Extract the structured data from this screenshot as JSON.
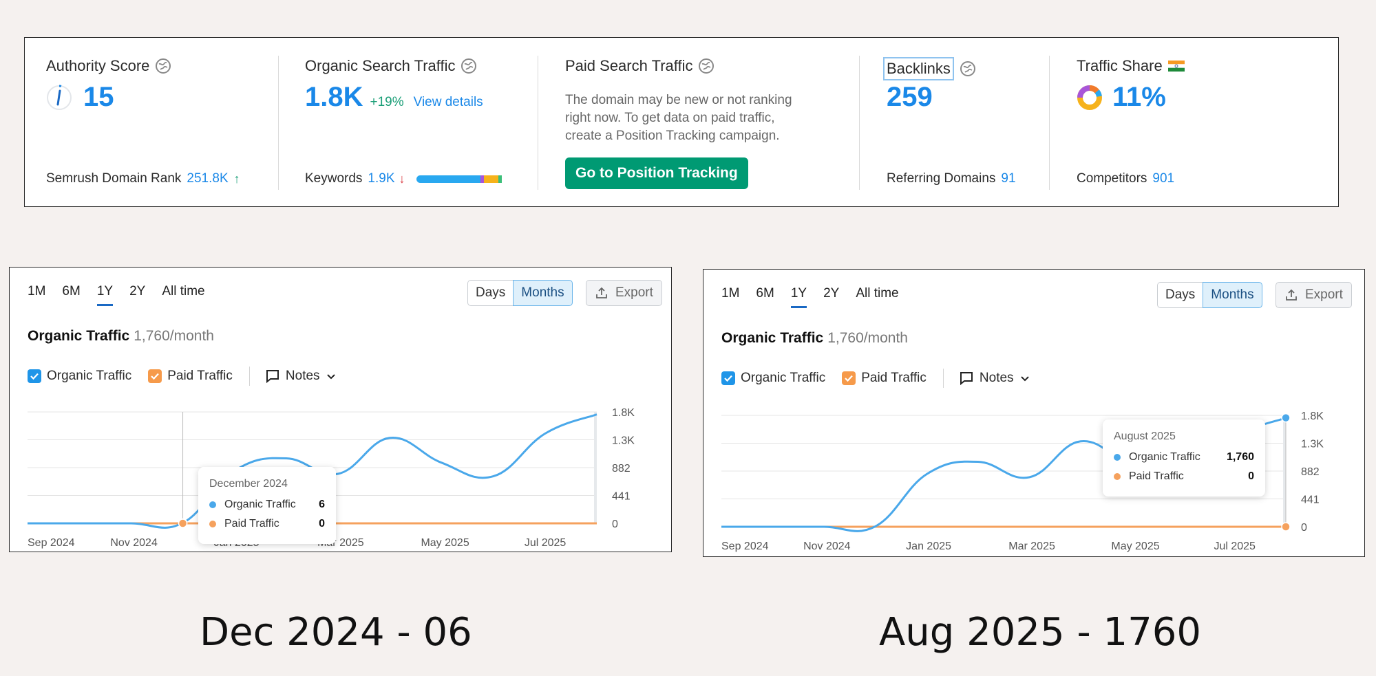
{
  "metrics": {
    "authority": {
      "title": "Authority Score",
      "value": "15",
      "foot_label": "Semrush Domain Rank",
      "foot_value": "251.8K",
      "foot_arrow": "↑"
    },
    "organic": {
      "title": "Organic Search Traffic",
      "value": "1.8K",
      "delta": "+19%",
      "link": "View details",
      "foot_label": "Keywords",
      "foot_value": "1.9K",
      "foot_arrow": "↓",
      "keyword_bar": [
        {
          "color": "#29a8f0",
          "share": 0.72
        },
        {
          "color": "#a855d9",
          "share": 0.04
        },
        {
          "color": "#f6b21b",
          "share": 0.16
        },
        {
          "color": "#3cbf7a",
          "share": 0.04
        }
      ]
    },
    "paid": {
      "title": "Paid Search Traffic",
      "text": "The domain may be new or not ranking right now. To get data on paid traffic, create a Position Tracking campaign.",
      "button": "Go to Position Tracking"
    },
    "backlinks": {
      "title": "Backlinks",
      "value": "259",
      "foot_label": "Referring Domains",
      "foot_value": "91"
    },
    "share": {
      "title": "Traffic Share",
      "value": "11%",
      "foot_label": "Competitors",
      "foot_value": "901"
    }
  },
  "panels": [
    {
      "tabs": [
        "1M",
        "6M",
        "1Y",
        "2Y",
        "All time"
      ],
      "active_tab": "1Y",
      "seg": [
        "Days",
        "Months"
      ],
      "export": "Export",
      "title": "Organic Traffic",
      "subtitle": "1,760/month",
      "legend": {
        "organic": "Organic Traffic",
        "paid": "Paid Traffic",
        "notes": "Notes"
      },
      "x_labels": [
        "Sep 2024",
        "Nov 2024",
        "Jan 2025",
        "Mar 2025",
        "May 2025",
        "Jul 2025"
      ],
      "y_labels": [
        "1.8K",
        "1.3K",
        "882",
        "441",
        "0"
      ],
      "tooltip": {
        "title": "December 2024",
        "organic_label": "Organic Traffic",
        "organic_value": "6",
        "paid_label": "Paid Traffic",
        "paid_value": "0"
      }
    },
    {
      "tabs": [
        "1M",
        "6M",
        "1Y",
        "2Y",
        "All time"
      ],
      "active_tab": "1Y",
      "seg": [
        "Days",
        "Months"
      ],
      "export": "Export",
      "title": "Organic Traffic",
      "subtitle": "1,760/month",
      "legend": {
        "organic": "Organic Traffic",
        "paid": "Paid Traffic",
        "notes": "Notes"
      },
      "x_labels": [
        "Sep 2024",
        "Nov 2024",
        "Jan 2025",
        "Mar 2025",
        "May 2025",
        "Jul 2025"
      ],
      "y_labels": [
        "1.8K",
        "1.3K",
        "882",
        "441",
        "0"
      ],
      "tooltip": {
        "title": "August 2025",
        "organic_label": "Organic Traffic",
        "organic_value": "1,760",
        "paid_label": "Paid Traffic",
        "paid_value": "0"
      }
    }
  ],
  "chart_data": [
    {
      "type": "line",
      "title": "Organic Traffic",
      "x": [
        "Sep 2024",
        "Oct 2024",
        "Nov 2024",
        "Dec 2024",
        "Jan 2025",
        "Feb 2025",
        "Mar 2025",
        "Apr 2025",
        "May 2025",
        "Jun 2025",
        "Jul 2025",
        "Aug 2025"
      ],
      "series": [
        {
          "name": "Organic Traffic",
          "color": "#4aa8ea",
          "values": [
            0,
            0,
            0,
            6,
            850,
            1050,
            800,
            1380,
            980,
            760,
            1450,
            1760
          ]
        },
        {
          "name": "Paid Traffic",
          "color": "#f5a15d",
          "values": [
            0,
            0,
            0,
            0,
            0,
            0,
            0,
            0,
            0,
            0,
            0,
            0
          ]
        }
      ],
      "ylim": [
        0,
        1800
      ],
      "highlight_index": 3
    },
    {
      "type": "line",
      "title": "Organic Traffic",
      "x": [
        "Sep 2024",
        "Oct 2024",
        "Nov 2024",
        "Dec 2024",
        "Jan 2025",
        "Feb 2025",
        "Mar 2025",
        "Apr 2025",
        "May 2025",
        "Jun 2025",
        "Jul 2025",
        "Aug 2025"
      ],
      "series": [
        {
          "name": "Organic Traffic",
          "color": "#4aa8ea",
          "values": [
            0,
            0,
            0,
            6,
            850,
            1050,
            800,
            1380,
            980,
            760,
            1450,
            1760
          ]
        },
        {
          "name": "Paid Traffic",
          "color": "#f5a15d",
          "values": [
            0,
            0,
            0,
            0,
            0,
            0,
            0,
            0,
            0,
            0,
            0,
            0
          ]
        }
      ],
      "ylim": [
        0,
        1800
      ],
      "highlight_index": 11
    }
  ],
  "captions": [
    "Dec 2024 - 06",
    "Aug 2025 - 1760"
  ]
}
